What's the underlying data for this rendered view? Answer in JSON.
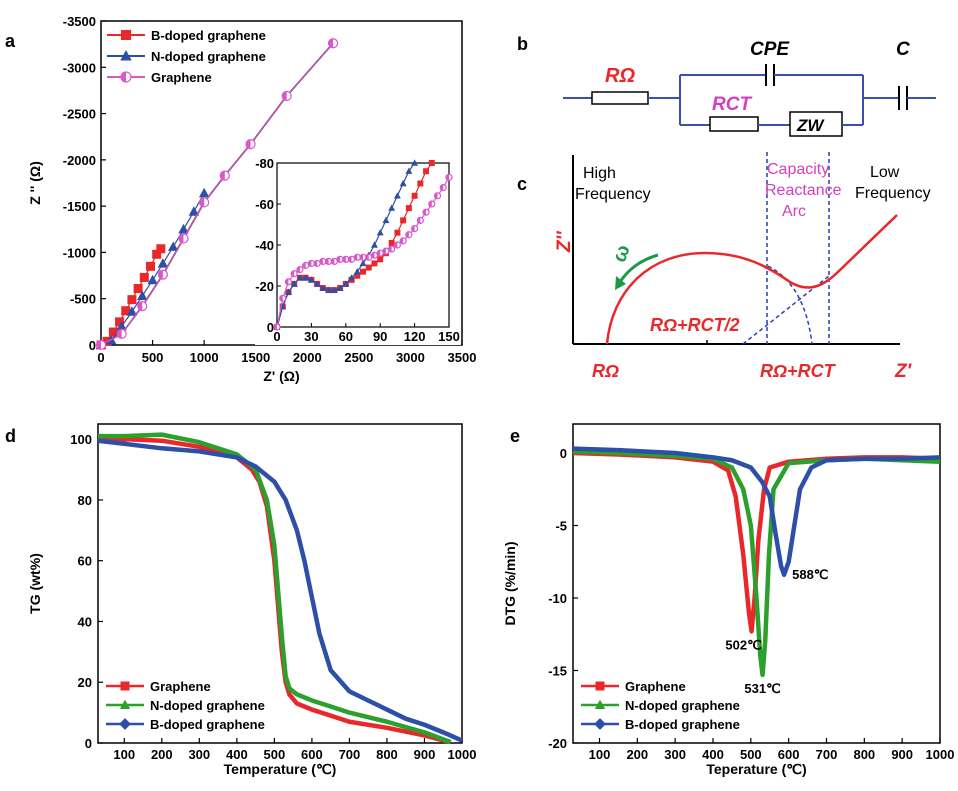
{
  "chart_data": [
    {
      "panel": "a",
      "type": "scatter",
      "xlabel": "Z' (Ω)",
      "ylabel": "Z '' (Ω)",
      "xlim": [
        0,
        3500
      ],
      "ylim": [
        0,
        -3500
      ],
      "xticks": [
        "0",
        "500",
        "1000",
        "1500",
        "2000",
        "2500",
        "3000",
        "3500"
      ],
      "yticks": [
        "0",
        "-500",
        "-1000",
        "-1500",
        "-2000",
        "-2500",
        "-3000",
        "-3500"
      ],
      "legend_position": "top-left",
      "series": [
        {
          "name": "B-doped graphene",
          "color": "#e8282a",
          "marker": "square",
          "x": [
            0,
            60,
            120,
            180,
            240,
            300,
            360,
            420,
            480,
            540,
            580
          ],
          "y": [
            0,
            -40,
            -140,
            -250,
            -370,
            -490,
            -610,
            -730,
            -850,
            -980,
            -1040
          ]
        },
        {
          "name": "N-doped graphene",
          "color": "#2e4fa8",
          "marker": "triangle",
          "x": [
            0,
            100,
            200,
            300,
            400,
            500,
            600,
            700,
            800,
            900,
            1000
          ],
          "y": [
            0,
            -50,
            -200,
            -360,
            -530,
            -700,
            -880,
            -1060,
            -1250,
            -1440,
            -1640
          ]
        },
        {
          "name": "Graphene",
          "color": "#d957c8",
          "marker": "half-circle",
          "x": [
            0,
            200,
            400,
            600,
            800,
            1000,
            1200,
            1450,
            1800,
            2250
          ],
          "y": [
            0,
            -120,
            -420,
            -760,
            -1150,
            -1540,
            -1830,
            -2170,
            -2690,
            -3260
          ]
        }
      ],
      "inset": {
        "xlim": [
          0,
          150
        ],
        "ylim": [
          0,
          -80
        ],
        "xticks": [
          "0",
          "30",
          "60",
          "90",
          "120",
          "150"
        ],
        "yticks": [
          "0",
          "-20",
          "-40",
          "-60",
          "-80"
        ],
        "series": [
          {
            "name": "B-doped graphene",
            "color": "#e8282a",
            "marker": "square",
            "x": [
              0,
              5,
              10,
              15,
              20,
              25,
              30,
              35,
              40,
              45,
              50,
              55,
              60,
              65,
              70,
              75,
              80,
              85,
              90,
              95,
              100,
              105,
              110,
              115,
              120,
              125,
              130,
              135
            ],
            "y": [
              0,
              -10,
              -17,
              -21,
              -24,
              -24,
              -23,
              -21,
              -19,
              -18,
              -18,
              -19,
              -21,
              -23,
              -25,
              -27,
              -29,
              -31,
              -33,
              -36,
              -41,
              -46,
              -52,
              -58,
              -64,
              -70,
              -76,
              -80
            ]
          },
          {
            "name": "N-doped graphene",
            "color": "#2e4fa8",
            "marker": "triangle",
            "x": [
              0,
              5,
              10,
              15,
              20,
              25,
              30,
              35,
              40,
              45,
              50,
              55,
              60,
              65,
              70,
              75,
              80,
              85,
              90,
              95,
              100,
              105,
              110,
              115,
              120
            ],
            "y": [
              0,
              -10,
              -17,
              -21,
              -24,
              -24,
              -23,
              -21,
              -19,
              -18,
              -18,
              -19,
              -21,
              -24,
              -27,
              -31,
              -35,
              -40,
              -46,
              -52,
              -58,
              -64,
              -70,
              -76,
              -80
            ]
          },
          {
            "name": "Graphene",
            "color": "#d957c8",
            "marker": "half-circle",
            "x": [
              0,
              5,
              10,
              15,
              20,
              25,
              30,
              35,
              40,
              45,
              50,
              55,
              60,
              65,
              70,
              75,
              80,
              85,
              90,
              95,
              100,
              105,
              110,
              115,
              120,
              125,
              130,
              135,
              140,
              145,
              150
            ],
            "y": [
              0,
              -14,
              -22,
              -26,
              -28,
              -30,
              -31,
              -31,
              -32,
              -32,
              -32,
              -33,
              -33,
              -33,
              -34,
              -34,
              -34,
              -35,
              -36,
              -37,
              -38,
              -40,
              -42,
              -45,
              -48,
              -52,
              -56,
              -60,
              -64,
              -68,
              -73
            ]
          }
        ]
      }
    },
    {
      "panel": "d",
      "type": "line",
      "xlabel": "Temperature (℃)",
      "ylabel": "TG (wt%)",
      "xlim": [
        30,
        1000
      ],
      "ylim": [
        0,
        105
      ],
      "xticks": [
        "100",
        "200",
        "300",
        "400",
        "500",
        "600",
        "700",
        "800",
        "900",
        "1000"
      ],
      "yticks": [
        "0",
        "20",
        "40",
        "60",
        "80",
        "100"
      ],
      "legend_position": "bottom-left",
      "series": [
        {
          "name": "Graphene",
          "color": "#e8282a",
          "marker": "square",
          "x": [
            30,
            100,
            200,
            300,
            350,
            400,
            440,
            460,
            480,
            500,
            510,
            520,
            530,
            540,
            560,
            600,
            650,
            700,
            800,
            900,
            960
          ],
          "y": [
            100,
            100,
            99.5,
            97.5,
            96,
            94,
            90,
            86,
            78,
            60,
            45,
            30,
            20,
            16,
            13,
            11,
            9,
            7,
            5,
            2.5,
            0.5
          ]
        },
        {
          "name": "N-doped graphene",
          "color": "#2ca02c",
          "marker": "triangle",
          "x": [
            30,
            100,
            200,
            300,
            400,
            450,
            480,
            500,
            510,
            520,
            530,
            540,
            560,
            600,
            650,
            700,
            800,
            900,
            970
          ],
          "y": [
            101,
            101,
            101.5,
            99,
            95,
            90,
            80,
            65,
            50,
            35,
            22,
            18,
            16,
            14,
            12,
            10,
            7,
            3.5,
            0.3
          ]
        },
        {
          "name": "B-doped graphene",
          "color": "#2e4fa8",
          "marker": "diamond",
          "x": [
            30,
            100,
            200,
            300,
            400,
            450,
            500,
            530,
            560,
            580,
            600,
            620,
            650,
            700,
            750,
            800,
            850,
            900,
            950,
            1000
          ],
          "y": [
            99.5,
            98.5,
            97,
            96,
            94,
            91,
            86,
            80,
            70,
            60,
            48,
            36,
            24,
            17,
            14,
            11,
            8,
            6,
            3.5,
            0.8
          ]
        }
      ]
    },
    {
      "panel": "e",
      "type": "line",
      "xlabel": "Teperature (℃)",
      "ylabel": "DTG (%/min)",
      "xlim": [
        30,
        1000
      ],
      "ylim": [
        -20,
        2
      ],
      "xticks": [
        "100",
        "200",
        "300",
        "400",
        "500",
        "600",
        "700",
        "800",
        "900",
        "1000"
      ],
      "yticks": [
        "0",
        "-5",
        "-10",
        "-15",
        "-20"
      ],
      "legend_position": "bottom-left",
      "annotations": [
        {
          "text": "502℃",
          "color": "#e8282a",
          "x": 502,
          "y": -12.3
        },
        {
          "text": "531℃",
          "color": "#2ca02c",
          "x": 531,
          "y": -15.3
        },
        {
          "text": "588℃",
          "color": "#2e4fa8",
          "x": 588,
          "y": -8.4
        }
      ],
      "series": [
        {
          "name": "Graphene",
          "color": "#e8282a",
          "marker": "square",
          "x": [
            30,
            150,
            300,
            400,
            440,
            460,
            480,
            495,
            502,
            510,
            520,
            535,
            550,
            600,
            700,
            800,
            900,
            1000
          ],
          "y": [
            0,
            -0.1,
            -0.3,
            -0.6,
            -1.2,
            -3,
            -7,
            -11,
            -12.3,
            -10,
            -6,
            -2.5,
            -1,
            -0.6,
            -0.4,
            -0.3,
            -0.3,
            -0.4
          ]
        },
        {
          "name": "N-doped graphene",
          "color": "#2ca02c",
          "marker": "triangle",
          "x": [
            30,
            150,
            300,
            400,
            450,
            480,
            500,
            515,
            525,
            531,
            538,
            548,
            560,
            600,
            700,
            800,
            900,
            1000
          ],
          "y": [
            0.1,
            0,
            -0.2,
            -0.4,
            -1,
            -2.5,
            -5,
            -10,
            -14,
            -15.3,
            -13,
            -7,
            -2.5,
            -0.7,
            -0.5,
            -0.4,
            -0.5,
            -0.6
          ]
        },
        {
          "name": "B-doped graphene",
          "color": "#2e4fa8",
          "marker": "diamond",
          "x": [
            30,
            150,
            300,
            400,
            450,
            500,
            530,
            550,
            565,
            580,
            588,
            600,
            615,
            630,
            660,
            700,
            800,
            900,
            1000
          ],
          "y": [
            0.3,
            0.2,
            0,
            -0.3,
            -0.5,
            -1,
            -2,
            -3,
            -5.5,
            -7.8,
            -8.4,
            -7.5,
            -5,
            -2.5,
            -1,
            -0.5,
            -0.4,
            -0.4,
            -0.3
          ]
        }
      ]
    }
  ],
  "panel_labels": {
    "a": "a",
    "b": "b",
    "c": "c",
    "d": "d",
    "e": "e"
  },
  "circuit": {
    "r_omega": "RΩ",
    "cpe": "CPE",
    "r_ct": "RCT",
    "zw": "ZW",
    "c": "C"
  },
  "nyquist_schematic": {
    "high_freq_1": "High",
    "high_freq_2": "Frequency",
    "cap_1": "Capacity",
    "cap_2": "Reactance",
    "cap_3": "Arc",
    "low_freq_1": "Low",
    "low_freq_2": "Frequency",
    "y_axis": "Z''",
    "x_axis": "Z'",
    "omega": "ω",
    "origin_label": "RΩ",
    "mid_label": "RΩ+RCT/2",
    "end_label": "RΩ+RCT"
  },
  "colors": {
    "red": "#e8282a",
    "blue": "#2e4fa8",
    "green": "#2ca02c",
    "pink": "#d957c8",
    "circuitblue": "#3a4fb0",
    "magenta": "#d43fbf"
  }
}
